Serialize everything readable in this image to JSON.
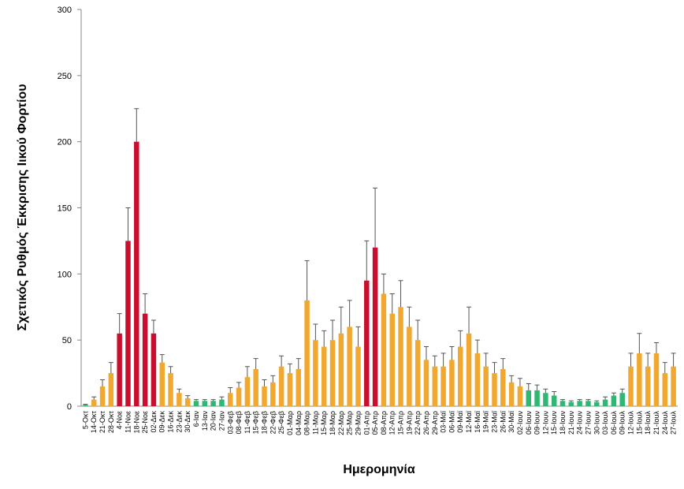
{
  "chart_data": {
    "type": "bar",
    "y_label": "Σχετικός Ρυθμός Έκκρισης Ιικού Φορτίου",
    "x_label": "Ημερομηνία",
    "categories": [
      "5-Οκτ",
      "14-Οκτ",
      "21-Οκτ",
      "28-Οκτ",
      "4-Νοε",
      "11-Νοε",
      "18-Νοε",
      "25-Νοε",
      "02-Δεκ",
      "09-Δεκ",
      "16-Δεκ",
      "23-Δεκ",
      "30-Δεκ",
      "6-Ιαν",
      "13-Ιαν",
      "20-Ιαν",
      "27-Ιαν",
      "03-Φεβ",
      "08-Φεβ",
      "11-Φεβ",
      "15-Φεβ",
      "18-Φεβ",
      "22-Φεβ",
      "25-Φεβ",
      "01-Μαρ",
      "04-Μαρ",
      "08-Μαρ",
      "11-Μαρ",
      "15-Μαρ",
      "18-Μαρ",
      "22-Μαρ",
      "25-Μαρ",
      "29-Μαρ",
      "01-Απρ",
      "05-Απρ",
      "08-Απρ",
      "12-Απρ",
      "15-Απρ",
      "19-Απρ",
      "22-Απρ",
      "26-Απρ",
      "29-Απρ",
      "03-Μαϊ",
      "06-Μαϊ",
      "09-Μαϊ",
      "12-Μαϊ",
      "16-Μαϊ",
      "19-Μαϊ",
      "23-Μαϊ",
      "26-Μαϊ",
      "30-Μαϊ",
      "02-Ιουν",
      "06-Ιουν",
      "09-Ιουν",
      "12-Ιουν",
      "15-Ιουν",
      "18-Ιουν",
      "21-Ιουν",
      "24-Ιουν",
      "27-Ιουν",
      "30-Ιουν",
      "03-Ιουλ",
      "06-Ιουλ",
      "09-Ιουλ",
      "12-Ιουλ",
      "15-Ιουλ",
      "18-Ιουλ",
      "21-Ιουλ",
      "24-Ιουλ",
      "27-Ιουλ"
    ],
    "values": [
      1,
      5,
      15,
      25,
      55,
      125,
      200,
      70,
      55,
      33,
      25,
      10,
      6,
      4,
      4,
      4,
      5,
      10,
      14,
      22,
      28,
      15,
      18,
      30,
      25,
      28,
      80,
      50,
      45,
      50,
      55,
      60,
      45,
      95,
      120,
      85,
      70,
      75,
      60,
      50,
      35,
      30,
      30,
      35,
      45,
      55,
      40,
      30,
      25,
      28,
      18,
      15,
      12,
      12,
      10,
      8,
      4,
      3,
      4,
      4,
      3,
      5,
      8,
      10,
      30,
      40,
      30,
      40,
      25,
      30
    ],
    "errors": [
      0.5,
      2,
      5,
      8,
      15,
      25,
      25,
      15,
      10,
      6,
      5,
      3,
      2,
      1,
      1,
      1,
      2,
      4,
      4,
      8,
      8,
      5,
      5,
      8,
      7,
      8,
      30,
      12,
      12,
      15,
      20,
      20,
      15,
      30,
      45,
      15,
      15,
      20,
      15,
      15,
      10,
      8,
      10,
      10,
      12,
      20,
      10,
      10,
      8,
      8,
      5,
      6,
      5,
      4,
      3,
      3,
      1,
      1,
      1,
      1,
      1,
      2,
      2,
      3,
      10,
      15,
      10,
      8,
      8,
      10
    ],
    "colors": [
      "#2eb872",
      "#f0a830",
      "#f0a830",
      "#f0a830",
      "#c8102e",
      "#c8102e",
      "#c8102e",
      "#c8102e",
      "#c8102e",
      "#f0a830",
      "#f0a830",
      "#f0a830",
      "#f0a830",
      "#2eb872",
      "#2eb872",
      "#2eb872",
      "#2eb872",
      "#f0a830",
      "#f0a830",
      "#f0a830",
      "#f0a830",
      "#f0a830",
      "#f0a830",
      "#f0a830",
      "#f0a830",
      "#f0a830",
      "#f0a830",
      "#f0a830",
      "#f0a830",
      "#f0a830",
      "#f0a830",
      "#f0a830",
      "#f0a830",
      "#c8102e",
      "#c8102e",
      "#f0a830",
      "#f0a830",
      "#f0a830",
      "#f0a830",
      "#f0a830",
      "#f0a830",
      "#f0a830",
      "#f0a830",
      "#f0a830",
      "#f0a830",
      "#f0a830",
      "#f0a830",
      "#f0a830",
      "#f0a830",
      "#f0a830",
      "#f0a830",
      "#f0a830",
      "#2eb872",
      "#2eb872",
      "#2eb872",
      "#2eb872",
      "#2eb872",
      "#2eb872",
      "#2eb872",
      "#2eb872",
      "#2eb872",
      "#2eb872",
      "#2eb872",
      "#2eb872",
      "#f0a830",
      "#f0a830",
      "#f0a830",
      "#f0a830",
      "#f0a830",
      "#f0a830"
    ],
    "error_color": "#555555",
    "ylim": [
      0,
      300
    ],
    "yticks": [
      0,
      50,
      100,
      150,
      200,
      250,
      300
    ],
    "grid": false
  }
}
